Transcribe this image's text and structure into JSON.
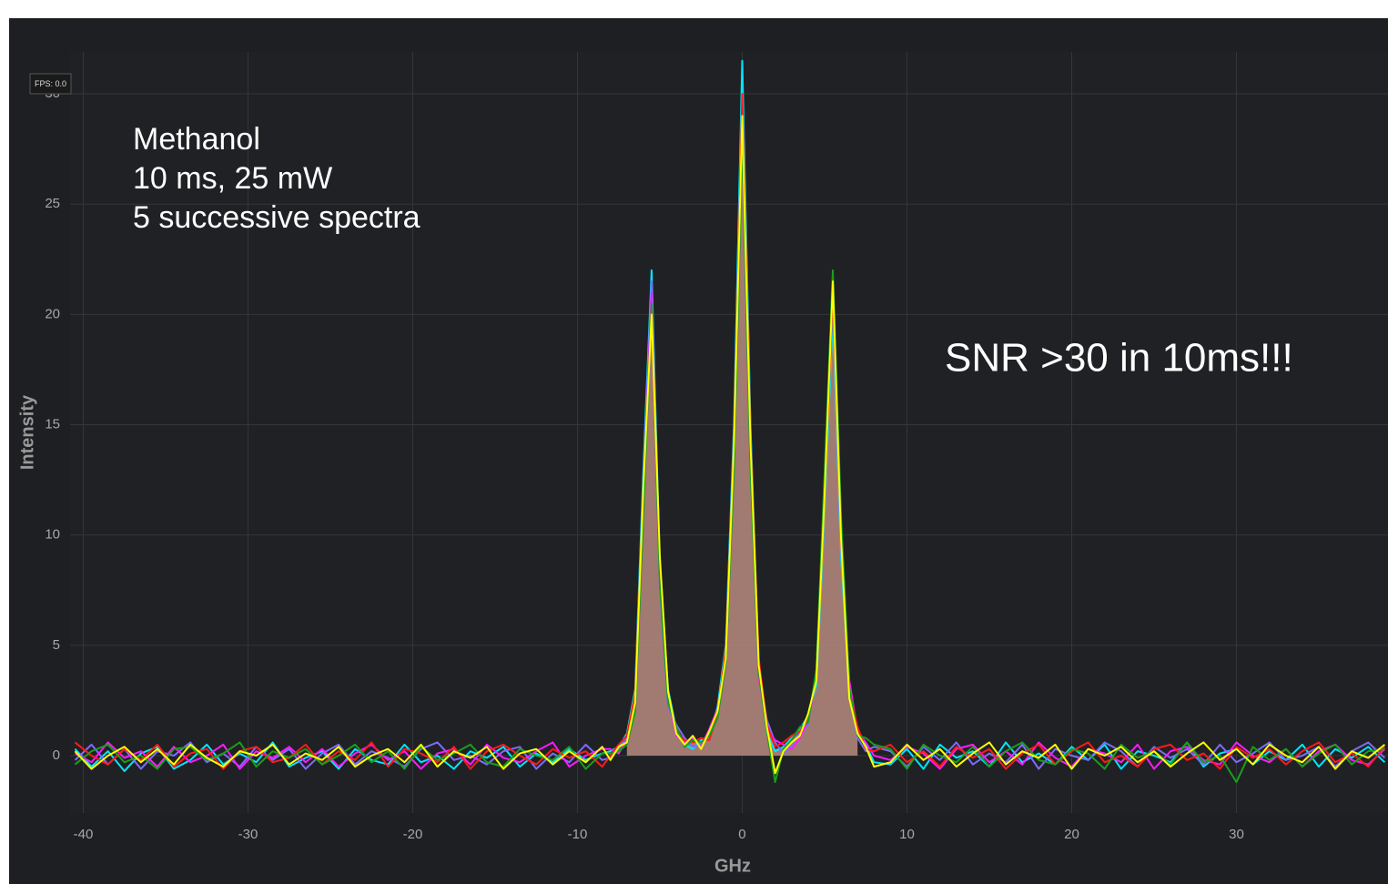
{
  "chart_data": {
    "type": "line",
    "x_label": "GHz",
    "y_label": "Intensity",
    "annotations": [
      "Methanol",
      "10 ms, 25 mW",
      "5 successive spectra",
      "SNR >30 in 10ms!!!"
    ],
    "fps_label": "FPS: 0.0",
    "xlim": [
      -40.8,
      39.2
    ],
    "ylim": [
      -2.6,
      31.9
    ],
    "xticks": [
      -40,
      -30,
      -20,
      -10,
      0,
      10,
      20,
      30
    ],
    "yticks": [
      0,
      5,
      10,
      15,
      20,
      25,
      30
    ],
    "grid": true,
    "x": [
      -40.5,
      -39.5,
      -38.5,
      -37.5,
      -36.5,
      -35.5,
      -34.5,
      -33.5,
      -32.5,
      -31.5,
      -30.5,
      -29.5,
      -28.5,
      -27.5,
      -26.5,
      -25.5,
      -24.5,
      -23.5,
      -22.5,
      -21.5,
      -20.5,
      -19.5,
      -18.5,
      -17.5,
      -16.5,
      -15.5,
      -14.5,
      -13.5,
      -12.5,
      -11.5,
      -10.5,
      -9.5,
      -8.5,
      -8,
      -7.5,
      -7,
      -6.5,
      -6,
      -5.5,
      -5,
      -4.5,
      -4,
      -3.5,
      -3,
      -2.5,
      -2,
      -1.5,
      -1,
      -0.5,
      0,
      0.5,
      1,
      1.5,
      2,
      2.5,
      3,
      3.5,
      4,
      4.5,
      5,
      5.5,
      6,
      6.5,
      7,
      7.5,
      8,
      9,
      10,
      11,
      12,
      13,
      14,
      15,
      16,
      17,
      18,
      19,
      20,
      21,
      22,
      23,
      24,
      25,
      26,
      27,
      28,
      29,
      30,
      31,
      32,
      33,
      34,
      35,
      36,
      37,
      38,
      39
    ],
    "series": [
      {
        "color": "#00e5ff",
        "values": [
          0.3,
          -0.5,
          0.2,
          -0.7,
          0.1,
          0.4,
          -0.6,
          -0.2,
          0.5,
          -0.4,
          0.1,
          -0.3,
          0.6,
          -0.5,
          -0.1,
          0.2,
          -0.6,
          0.3,
          -0.2,
          -0.4,
          0.5,
          -0.3,
          0.0,
          -0.6,
          0.2,
          -0.1,
          0.4,
          -0.5,
          0.1,
          -0.3,
          0.3,
          -0.2,
          0.1,
          0.2,
          0.4,
          1.0,
          3.0,
          13,
          22,
          8.5,
          3.0,
          1.2,
          0.5,
          0.3,
          0.7,
          0.9,
          2.2,
          5.0,
          15,
          31.5,
          15,
          4.2,
          1.0,
          0.2,
          0.4,
          0.8,
          1.2,
          1.8,
          3.2,
          11,
          20,
          9,
          3.2,
          1.2,
          0.5,
          -0.3,
          -0.4,
          0.3,
          -0.6,
          0.5,
          -0.1,
          0.2,
          -0.5,
          0.6,
          -0.3,
          0.1,
          -0.4,
          0.4,
          -0.2,
          0.5,
          -0.6,
          0.2,
          0.0,
          -0.3,
          0.6,
          -0.5,
          0.1,
          0.3,
          -0.4,
          0.2,
          -0.2,
          0.5,
          -0.5,
          0.3,
          -0.1,
          0.4,
          -0.3
        ]
      },
      {
        "color": "#7b6cff",
        "values": [
          -0.2,
          0.5,
          -0.4,
          0.3,
          -0.6,
          0.2,
          0.0,
          0.6,
          -0.3,
          0.1,
          -0.5,
          0.4,
          -0.2,
          0.3,
          -0.6,
          0.1,
          0.5,
          -0.4,
          0.2,
          -0.1,
          -0.5,
          0.3,
          0.6,
          -0.2,
          0.0,
          -0.4,
          0.2,
          0.4,
          -0.6,
          0.1,
          -0.3,
          0.5,
          -0.2,
          -0.1,
          0.3,
          0.8,
          2.6,
          12.5,
          21.5,
          7.5,
          2.2,
          1.4,
          0.8,
          0.4,
          0.5,
          1.0,
          1.8,
          4.6,
          13.5,
          29,
          13.5,
          4.0,
          1.6,
          0.6,
          0.1,
          0.5,
          1.0,
          1.4,
          3.8,
          12.5,
          21,
          10.5,
          2.8,
          0.8,
          0.2,
          0.4,
          0.2,
          -0.5,
          0.4,
          -0.2,
          0.6,
          -0.4,
          0.1,
          -0.3,
          0.5,
          -0.6,
          0.3,
          0.0,
          -0.2,
          0.6,
          0.2,
          -0.5,
          0.4,
          -0.1,
          0.3,
          -0.4,
          0.5,
          -0.3,
          0.1,
          0.6,
          -0.2,
          0.0,
          0.4,
          -0.5,
          0.2,
          0.6,
          -0.1
        ]
      },
      {
        "color": "#ff1aff",
        "values": [
          0.1,
          -0.3,
          0.6,
          -0.1,
          0.2,
          -0.5,
          0.4,
          -0.3,
          0.0,
          0.5,
          -0.6,
          0.2,
          -0.1,
          0.4,
          -0.3,
          0.3,
          -0.5,
          0.1,
          0.5,
          -0.2,
          0.2,
          -0.6,
          0.1,
          0.3,
          -0.4,
          0.5,
          -0.1,
          -0.3,
          0.2,
          0.6,
          -0.5,
          0.0,
          0.3,
          0.3,
          0.1,
          0.7,
          2.3,
          11.5,
          21,
          8,
          2.6,
          0.9,
          0.6,
          0.8,
          0.4,
          1.2,
          2.1,
          4.3,
          14.5,
          29.5,
          14,
          3.6,
          1.2,
          0.7,
          0.5,
          0.3,
          0.8,
          1.6,
          3.5,
          12,
          21,
          9.5,
          3.4,
          1.1,
          0.6,
          0.0,
          -0.2,
          0.4,
          0.1,
          -0.6,
          0.3,
          0.5,
          -0.3,
          0.2,
          -0.4,
          0.6,
          -0.1,
          -0.5,
          0.3,
          0.1,
          -0.3,
          0.5,
          -0.6,
          0.2,
          0.4,
          -0.2,
          -0.4,
          0.6,
          0.0,
          -0.3,
          0.3,
          -0.5,
          0.2,
          0.5,
          -0.2,
          -0.4,
          0.3
        ]
      },
      {
        "color": "#ff1a1a",
        "values": [
          0.6,
          0.0,
          -0.4,
          0.3,
          -0.2,
          0.5,
          -0.5,
          0.1,
          0.3,
          -0.6,
          0.2,
          0.4,
          -0.3,
          -0.1,
          0.5,
          -0.4,
          0.2,
          -0.2,
          0.6,
          -0.5,
          0.3,
          0.1,
          -0.3,
          0.4,
          -0.6,
          0.2,
          0.5,
          0.0,
          -0.4,
          0.3,
          -0.1,
          0.2,
          -0.5,
          0.0,
          0.5,
          0.9,
          2.8,
          12,
          20,
          8.2,
          2.8,
          1.1,
          0.7,
          0.6,
          0.8,
          0.7,
          1.9,
          4.8,
          14,
          30,
          14.5,
          4.4,
          1.4,
          0.4,
          0.6,
          0.9,
          1.1,
          1.7,
          3.6,
          11.5,
          21,
          10,
          3.0,
          1.3,
          0.3,
          0.2,
          0.5,
          -0.3,
          0.2,
          -0.5,
          0.4,
          -0.1,
          0.3,
          -0.6,
          0.1,
          0.5,
          -0.4,
          0.2,
          0.6,
          -0.3,
          0.0,
          -0.5,
          0.3,
          0.5,
          -0.2,
          0.1,
          -0.6,
          0.4,
          -0.1,
          0.3,
          -0.4,
          0.2,
          0.6,
          -0.3,
          0.1,
          -0.5,
          0.4
        ]
      },
      {
        "color": "#1a9e1a",
        "values": [
          -0.4,
          0.2,
          0.5,
          -0.3,
          0.0,
          -0.6,
          0.3,
          0.4,
          -0.2,
          0.1,
          0.6,
          -0.5,
          0.2,
          -0.1,
          0.3,
          -0.4,
          0.0,
          0.5,
          -0.3,
          0.2,
          -0.6,
          0.4,
          -0.2,
          0.1,
          0.5,
          -0.3,
          -0.5,
          0.3,
          0.0,
          -0.2,
          0.4,
          -0.6,
          0.1,
          0.1,
          0.2,
          0.5,
          2.0,
          11,
          20.5,
          7.8,
          2.4,
          1.3,
          0.4,
          0.7,
          0.6,
          0.9,
          1.7,
          4.2,
          13,
          28,
          13,
          3.8,
          1.1,
          -1.2,
          0.3,
          0.7,
          1.3,
          1.5,
          3.9,
          12.8,
          22,
          10.8,
          3.1,
          0.9,
          0.8,
          0.5,
          0.3,
          -0.6,
          0.5,
          0.0,
          -0.3,
          0.4,
          -0.5,
          0.2,
          0.6,
          -0.2,
          -0.4,
          0.3,
          0.1,
          -0.6,
          0.5,
          -0.1,
          0.2,
          -0.4,
          0.6,
          -0.3,
          0.0,
          -1.2,
          0.4,
          -0.2,
          0.3,
          -0.5,
          0.1,
          0.5,
          -0.4,
          0.2,
          0.3
        ]
      },
      {
        "color": "#ffff00",
        "values": [
          0.2,
          -0.6,
          0.0,
          0.4,
          -0.3,
          0.3,
          -0.4,
          0.5,
          -0.1,
          -0.5,
          0.2,
          0.0,
          0.5,
          -0.4,
          0.1,
          -0.2,
          0.4,
          -0.5,
          0.0,
          0.3,
          -0.3,
          0.5,
          -0.5,
          0.2,
          -0.1,
          0.4,
          -0.6,
          0.1,
          0.3,
          -0.4,
          0.2,
          -0.3,
          0.4,
          -0.2,
          0.4,
          0.6,
          2.4,
          12.2,
          20,
          9,
          2.9,
          1.0,
          0.5,
          0.9,
          0.3,
          1.1,
          2.0,
          4.4,
          14.2,
          29,
          14.2,
          4.1,
          1.3,
          -0.8,
          0.2,
          0.6,
          0.9,
          1.9,
          3.4,
          11.8,
          21.5,
          9.8,
          2.6,
          1.0,
          0.4,
          -0.5,
          -0.3,
          0.5,
          -0.2,
          0.3,
          -0.5,
          0.1,
          0.6,
          -0.4,
          0.2,
          -0.1,
          0.5,
          -0.6,
          0.3,
          0.0,
          0.4,
          -0.3,
          0.2,
          -0.5,
          0.1,
          0.6,
          -0.2,
          0.3,
          -0.4,
          0.5,
          0.0,
          -0.3,
          0.4,
          -0.6,
          0.2,
          -0.1,
          0.5
        ]
      }
    ],
    "area": {
      "color": "#b98a80",
      "x": [
        -7,
        -6.5,
        -6,
        -5.5,
        -5,
        -4.5,
        -4,
        -3.5,
        -3,
        -2.5,
        -2,
        -1.5,
        -1,
        -0.5,
        0,
        0.5,
        1,
        1.5,
        2,
        2.5,
        3,
        3.5,
        4,
        4.5,
        5,
        5.5,
        6,
        6.5,
        7
      ],
      "values": [
        0.7,
        2.6,
        12,
        21,
        8,
        2.7,
        1.1,
        0.6,
        0.6,
        0.6,
        0.9,
        2.0,
        4.6,
        14,
        29.5,
        14,
        4,
        1.3,
        0.3,
        0.4,
        0.7,
        1.1,
        1.6,
        3.6,
        12,
        21,
        10,
        3,
        1.1
      ]
    }
  }
}
